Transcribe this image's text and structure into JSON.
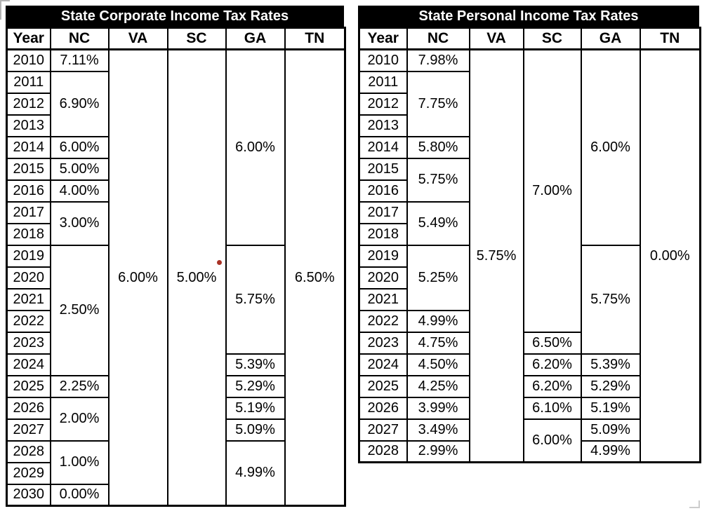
{
  "page": {
    "background": "#ffffff"
  },
  "annotations": {
    "red_dot_color": "#a93226"
  },
  "chart_data": [
    {
      "type": "table",
      "title": "State Corporate Income Tax Rates",
      "columns": [
        "Year",
        "NC",
        "VA",
        "SC",
        "GA",
        "TN"
      ],
      "years": [
        "2010",
        "2011",
        "2012",
        "2013",
        "2014",
        "2015",
        "2016",
        "2017",
        "2018",
        "2019",
        "2020",
        "2021",
        "2022",
        "2023",
        "2024",
        "2025",
        "2026",
        "2027",
        "2028",
        "2029",
        "2030"
      ],
      "series": [
        {
          "name": "NC",
          "segments": [
            {
              "value": "7.11%",
              "span": 1
            },
            {
              "value": "6.90%",
              "span": 3
            },
            {
              "value": "6.00%",
              "span": 1
            },
            {
              "value": "5.00%",
              "span": 1
            },
            {
              "value": "4.00%",
              "span": 1
            },
            {
              "value": "3.00%",
              "span": 2
            },
            {
              "value": "2.50%",
              "span": 6
            },
            {
              "value": "2.25%",
              "span": 1
            },
            {
              "value": "2.00%",
              "span": 2
            },
            {
              "value": "1.00%",
              "span": 2
            },
            {
              "value": "0.00%",
              "span": 1
            }
          ]
        },
        {
          "name": "VA",
          "segments": [
            {
              "value": "6.00%",
              "span": 21
            }
          ]
        },
        {
          "name": "SC",
          "segments": [
            {
              "value": "5.00%",
              "span": 21
            }
          ]
        },
        {
          "name": "GA",
          "segments": [
            {
              "value": "6.00%",
              "span": 9
            },
            {
              "value": "5.75%",
              "span": 5
            },
            {
              "value": "5.39%",
              "span": 1
            },
            {
              "value": "5.29%",
              "span": 1
            },
            {
              "value": "5.19%",
              "span": 1
            },
            {
              "value": "5.09%",
              "span": 1
            },
            {
              "value": "4.99%",
              "span": 3
            }
          ]
        },
        {
          "name": "TN",
          "segments": [
            {
              "value": "6.50%",
              "span": 21
            }
          ]
        }
      ]
    },
    {
      "type": "table",
      "title": "State Personal Income Tax Rates",
      "columns": [
        "Year",
        "NC",
        "VA",
        "SC",
        "GA",
        "TN"
      ],
      "years": [
        "2010",
        "2011",
        "2012",
        "2013",
        "2014",
        "2015",
        "2016",
        "2017",
        "2018",
        "2019",
        "2020",
        "2021",
        "2022",
        "2023",
        "2024",
        "2025",
        "2026",
        "2027",
        "2028"
      ],
      "series": [
        {
          "name": "NC",
          "segments": [
            {
              "value": "7.98%",
              "span": 1
            },
            {
              "value": "7.75%",
              "span": 3
            },
            {
              "value": "5.80%",
              "span": 1
            },
            {
              "value": "5.75%",
              "span": 2
            },
            {
              "value": "5.49%",
              "span": 2
            },
            {
              "value": "5.25%",
              "span": 3
            },
            {
              "value": "4.99%",
              "span": 1
            },
            {
              "value": "4.75%",
              "span": 1
            },
            {
              "value": "4.50%",
              "span": 1
            },
            {
              "value": "4.25%",
              "span": 1
            },
            {
              "value": "3.99%",
              "span": 1
            },
            {
              "value": "3.49%",
              "span": 1
            },
            {
              "value": "2.99%",
              "span": 1
            }
          ]
        },
        {
          "name": "VA",
          "segments": [
            {
              "value": "5.75%",
              "span": 19
            }
          ]
        },
        {
          "name": "SC",
          "segments": [
            {
              "value": "7.00%",
              "span": 13
            },
            {
              "value": "6.50%",
              "span": 1
            },
            {
              "value": "6.20%",
              "span": 1
            },
            {
              "value": "6.20%",
              "span": 1
            },
            {
              "value": "6.10%",
              "span": 1
            },
            {
              "value": "6.00%",
              "span": 2
            }
          ]
        },
        {
          "name": "GA",
          "segments": [
            {
              "value": "6.00%",
              "span": 9
            },
            {
              "value": "5.75%",
              "span": 5
            },
            {
              "value": "5.39%",
              "span": 1
            },
            {
              "value": "5.29%",
              "span": 1
            },
            {
              "value": "5.19%",
              "span": 1
            },
            {
              "value": "5.09%",
              "span": 1
            },
            {
              "value": "4.99%",
              "span": 1
            }
          ]
        },
        {
          "name": "TN",
          "segments": [
            {
              "value": "0.00%",
              "span": 19
            }
          ]
        }
      ]
    }
  ]
}
